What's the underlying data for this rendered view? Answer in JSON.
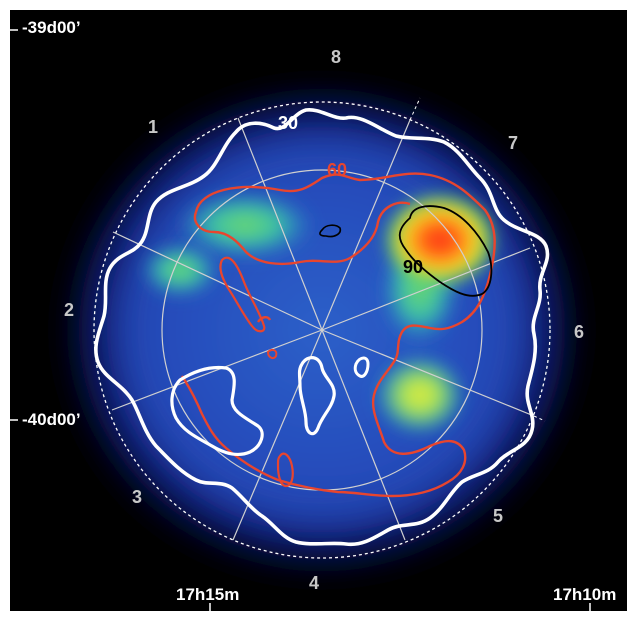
{
  "map": {
    "axis_labels": {
      "dec_top": "-39d00’",
      "dec_mid": "-40d00’",
      "ra_left": "17h15m",
      "ra_right": "17h10m"
    },
    "contour_labels": {
      "c30": "30",
      "c60": "60",
      "c90": "90"
    },
    "sector_labels": [
      "1",
      "2",
      "3",
      "4",
      "5",
      "6",
      "7",
      "8"
    ],
    "colors": {
      "frame": "#ffffff",
      "background": "#000000",
      "contour_30": "#ffffff",
      "contour_60": "#e8452e",
      "contour_90": "#000000",
      "sector_label": "#c8c8c8",
      "grid": "#d0d0d0"
    }
  }
}
